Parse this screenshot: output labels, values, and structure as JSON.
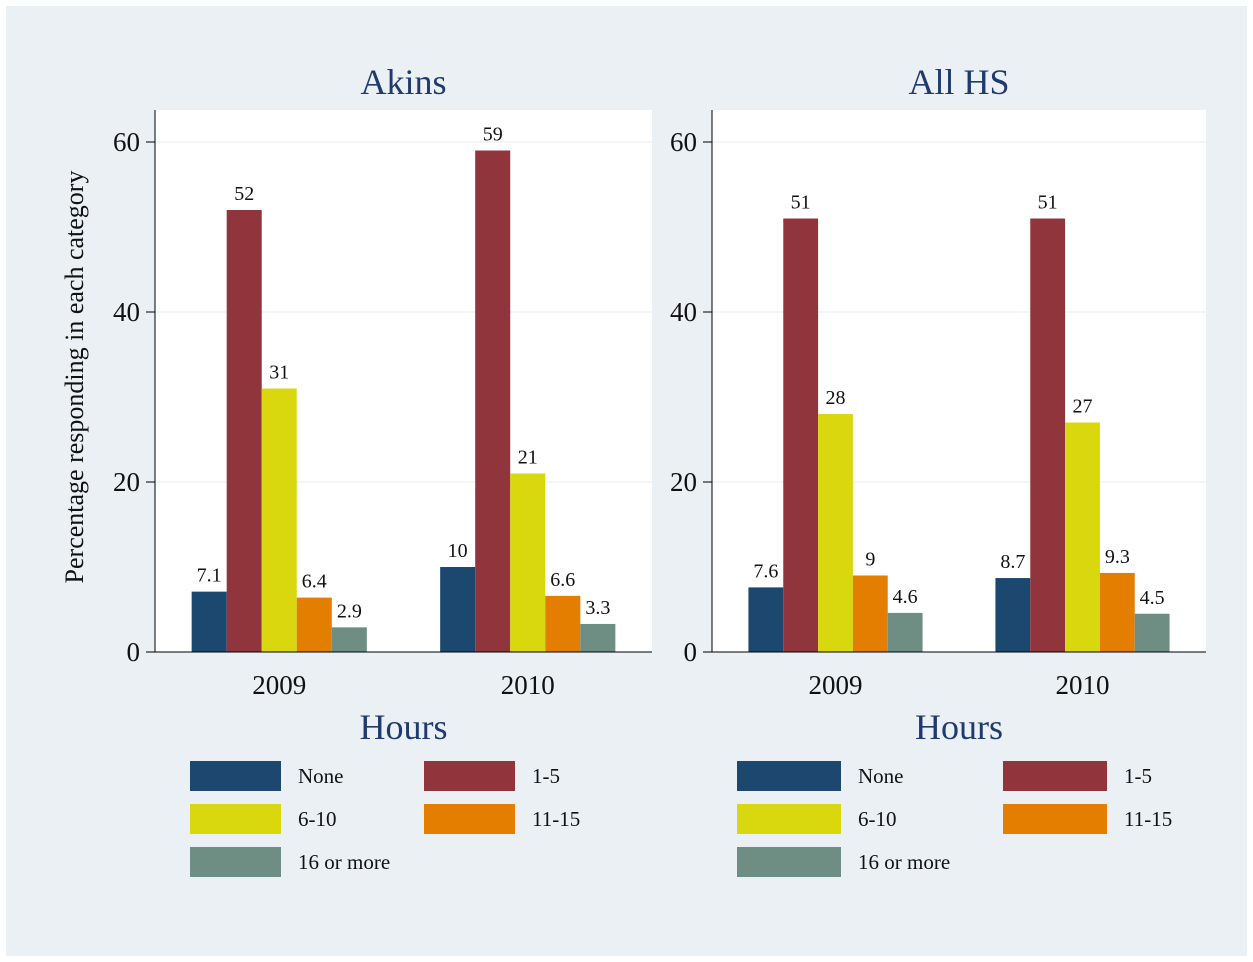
{
  "chart_data": [
    {
      "type": "bar",
      "title": "Akins",
      "categories": [
        "2009",
        "2010"
      ],
      "series": [
        {
          "name": "None",
          "values": [
            7.1,
            10
          ],
          "labels": [
            "7.1",
            "10"
          ],
          "color": "#1c476f"
        },
        {
          "name": "1-5",
          "values": [
            52,
            59
          ],
          "labels": [
            "52",
            "59"
          ],
          "color": "#90353b"
        },
        {
          "name": "6-10",
          "values": [
            31,
            21
          ],
          "labels": [
            "31",
            "21"
          ],
          "color": "#d9d80f"
        },
        {
          "name": "11-15",
          "values": [
            6.4,
            6.6
          ],
          "labels": [
            "6.4",
            "6.6"
          ],
          "color": "#e37e00"
        },
        {
          "name": "16 or more",
          "values": [
            2.9,
            3.3
          ],
          "labels": [
            "2.9",
            "3.3"
          ],
          "color": "#6e8e84"
        }
      ],
      "xlabel": "Hours",
      "ylabel": "Percentage responding in each category",
      "ylim": [
        0,
        60
      ],
      "yticks": [
        0,
        20,
        40,
        60
      ],
      "grid": true,
      "legend": "bottom"
    },
    {
      "type": "bar",
      "title": "All HS",
      "categories": [
        "2009",
        "2010"
      ],
      "series": [
        {
          "name": "None",
          "values": [
            7.6,
            8.7
          ],
          "labels": [
            "7.6",
            "8.7"
          ],
          "color": "#1c476f"
        },
        {
          "name": "1-5",
          "values": [
            51,
            51
          ],
          "labels": [
            "51",
            "51"
          ],
          "color": "#90353b"
        },
        {
          "name": "6-10",
          "values": [
            28,
            27
          ],
          "labels": [
            "28",
            "27"
          ],
          "color": "#d9d80f"
        },
        {
          "name": "11-15",
          "values": [
            9,
            9.3
          ],
          "labels": [
            "9",
            "9.3"
          ],
          "color": "#e37e00"
        },
        {
          "name": "16 or more",
          "values": [
            4.6,
            4.5
          ],
          "labels": [
            "4.6",
            "4.5"
          ],
          "color": "#6e8e84"
        }
      ],
      "xlabel": "Hours",
      "ylabel": "",
      "ylim": [
        0,
        60
      ],
      "yticks": [
        0,
        20,
        40,
        60
      ],
      "grid": true,
      "legend": "bottom"
    }
  ]
}
